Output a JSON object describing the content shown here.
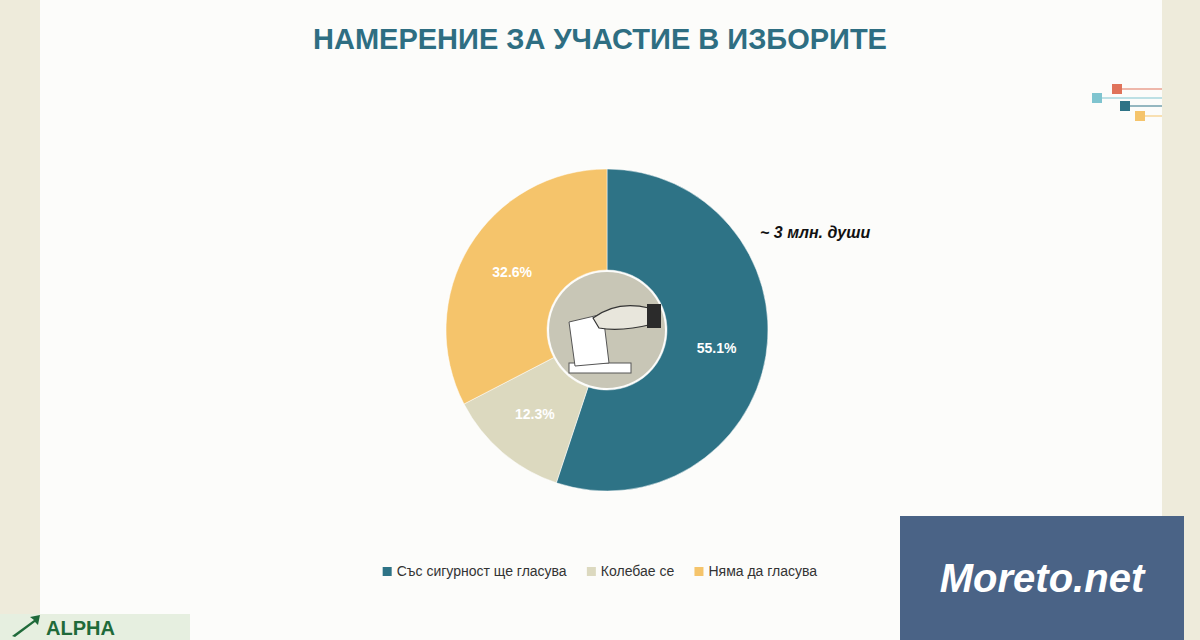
{
  "chart_data": {
    "type": "pie",
    "title": "НАМЕРЕНИЕ ЗА УЧАСТИЕ В ИЗБОРИТЕ",
    "categories": [
      "Със сигурност ще гласува",
      "Колебае се",
      "Няма да гласува"
    ],
    "values": [
      55.1,
      12.3,
      32.6
    ],
    "value_labels": [
      "55.1%",
      "12.3%",
      "32.6%"
    ],
    "colors": [
      "#2e7386",
      "#dcd9bf",
      "#f5c46b"
    ],
    "data_labels": true,
    "legend": "bottom",
    "annotation": "~ 3 млн. души"
  },
  "watermark": "Moreto.net",
  "logo": "ALPHA"
}
